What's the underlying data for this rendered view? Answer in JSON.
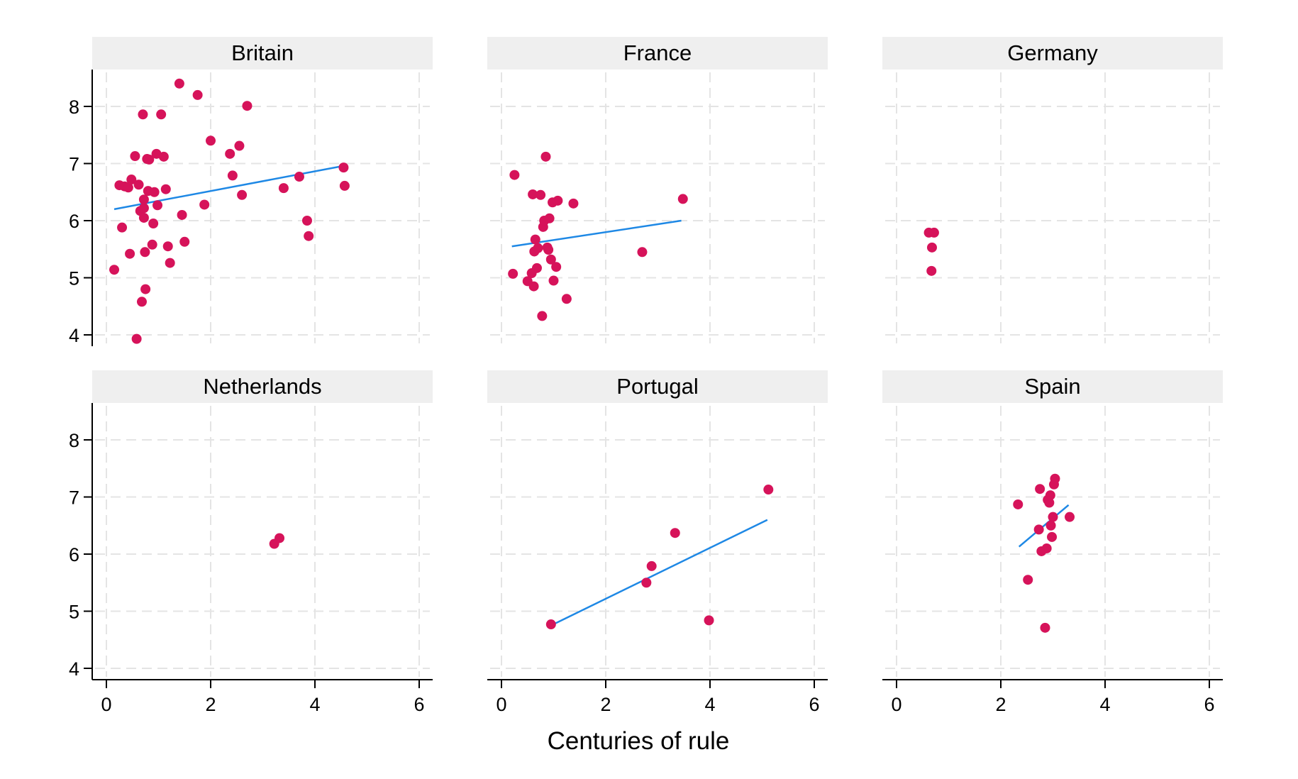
{
  "chart_data": {
    "type": "scatter",
    "title": "",
    "xlabel": "Centuries of rule",
    "ylabel": "",
    "xlim": [
      -0.25,
      6.25
    ],
    "ylim": [
      3.7,
      8.6
    ],
    "x_ticks": [
      "0",
      "2",
      "4",
      "6"
    ],
    "y_ticks": [
      "4",
      "5",
      "6",
      "7",
      "8"
    ],
    "grid": true,
    "layout": "3x2 facet grid",
    "point_color": "#d6135a",
    "line_color": "#1e88e5",
    "panels": [
      {
        "name": "Britain",
        "fit_line": [
          [
            0.15,
            6.2
          ],
          [
            4.5,
            6.95
          ]
        ],
        "points": [
          [
            0.15,
            5.14
          ],
          [
            0.25,
            6.62
          ],
          [
            0.3,
            5.88
          ],
          [
            0.35,
            6.6
          ],
          [
            0.42,
            6.58
          ],
          [
            0.45,
            5.42
          ],
          [
            0.48,
            6.72
          ],
          [
            0.55,
            7.13
          ],
          [
            0.58,
            3.93
          ],
          [
            0.62,
            6.63
          ],
          [
            0.65,
            6.17
          ],
          [
            0.68,
            4.58
          ],
          [
            0.7,
            7.86
          ],
          [
            0.72,
            6.05
          ],
          [
            0.72,
            6.22
          ],
          [
            0.72,
            6.37
          ],
          [
            0.74,
            5.45
          ],
          [
            0.75,
            4.8
          ],
          [
            0.78,
            7.08
          ],
          [
            0.8,
            6.52
          ],
          [
            0.82,
            7.07
          ],
          [
            0.88,
            5.58
          ],
          [
            0.9,
            5.95
          ],
          [
            0.92,
            6.5
          ],
          [
            0.96,
            7.17
          ],
          [
            0.98,
            6.27
          ],
          [
            1.05,
            7.86
          ],
          [
            1.1,
            7.12
          ],
          [
            1.14,
            6.55
          ],
          [
            1.18,
            5.55
          ],
          [
            1.22,
            5.26
          ],
          [
            1.4,
            8.4
          ],
          [
            1.45,
            6.1
          ],
          [
            1.5,
            5.63
          ],
          [
            1.75,
            8.2
          ],
          [
            1.88,
            6.28
          ],
          [
            2.0,
            7.4
          ],
          [
            2.37,
            7.17
          ],
          [
            2.42,
            6.79
          ],
          [
            2.55,
            7.31
          ],
          [
            2.6,
            6.45
          ],
          [
            2.7,
            8.01
          ],
          [
            3.4,
            6.57
          ],
          [
            3.7,
            6.77
          ],
          [
            3.85,
            6.0
          ],
          [
            3.88,
            5.73
          ],
          [
            4.55,
            6.93
          ],
          [
            4.57,
            6.61
          ]
        ]
      },
      {
        "name": "France",
        "fit_line": [
          [
            0.2,
            5.55
          ],
          [
            3.45,
            6.0
          ]
        ],
        "points": [
          [
            0.22,
            5.07
          ],
          [
            0.25,
            6.8
          ],
          [
            0.5,
            4.94
          ],
          [
            0.58,
            5.08
          ],
          [
            0.6,
            6.46
          ],
          [
            0.62,
            4.85
          ],
          [
            0.63,
            5.46
          ],
          [
            0.65,
            5.67
          ],
          [
            0.68,
            5.17
          ],
          [
            0.7,
            5.52
          ],
          [
            0.75,
            6.45
          ],
          [
            0.78,
            4.33
          ],
          [
            0.8,
            5.89
          ],
          [
            0.82,
            6.0
          ],
          [
            0.85,
            7.12
          ],
          [
            0.88,
            5.53
          ],
          [
            0.9,
            5.49
          ],
          [
            0.92,
            6.04
          ],
          [
            0.95,
            5.32
          ],
          [
            0.98,
            6.32
          ],
          [
            1.0,
            4.95
          ],
          [
            1.05,
            5.19
          ],
          [
            1.08,
            6.35
          ],
          [
            1.25,
            4.63
          ],
          [
            1.38,
            6.3
          ],
          [
            2.7,
            5.45
          ],
          [
            3.48,
            6.38
          ]
        ]
      },
      {
        "name": "Germany",
        "fit_line": [],
        "points": [
          [
            0.62,
            5.79
          ],
          [
            0.72,
            5.79
          ],
          [
            0.68,
            5.53
          ],
          [
            0.67,
            5.12
          ]
        ]
      },
      {
        "name": "Netherlands",
        "fit_line": [],
        "points": [
          [
            3.22,
            6.18
          ],
          [
            3.32,
            6.28
          ]
        ]
      },
      {
        "name": "Portugal",
        "fit_line": [
          [
            0.95,
            4.75
          ],
          [
            5.1,
            6.6
          ]
        ],
        "points": [
          [
            0.95,
            4.77
          ],
          [
            2.78,
            5.5
          ],
          [
            2.88,
            5.79
          ],
          [
            3.33,
            6.37
          ],
          [
            3.98,
            4.84
          ],
          [
            5.12,
            7.13
          ]
        ]
      },
      {
        "name": "Spain",
        "fit_line": [
          [
            2.35,
            6.13
          ],
          [
            3.3,
            6.86
          ]
        ],
        "points": [
          [
            2.33,
            6.87
          ],
          [
            2.52,
            5.55
          ],
          [
            2.73,
            6.43
          ],
          [
            2.75,
            7.14
          ],
          [
            2.78,
            6.05
          ],
          [
            2.85,
            4.71
          ],
          [
            2.88,
            6.1
          ],
          [
            2.9,
            6.95
          ],
          [
            2.93,
            6.9
          ],
          [
            2.95,
            7.03
          ],
          [
            2.96,
            6.5
          ],
          [
            2.98,
            6.3
          ],
          [
            3.0,
            6.65
          ],
          [
            3.02,
            7.22
          ],
          [
            3.04,
            7.32
          ],
          [
            3.32,
            6.65
          ]
        ]
      }
    ]
  }
}
